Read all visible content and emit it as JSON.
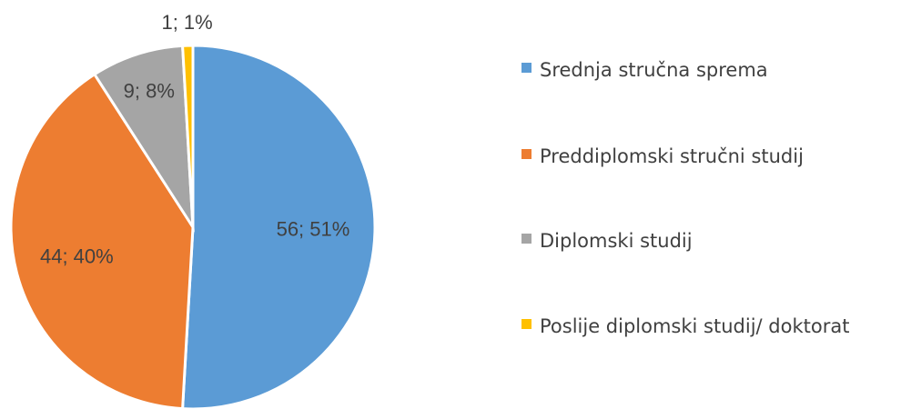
{
  "chart_data": {
    "type": "pie",
    "categories": [
      "Srednja stručna sprema",
      "Preddiplomski stručni studij",
      "Diplomski studij",
      "Poslije diplomski studij/ doktorat"
    ],
    "values": [
      56,
      44,
      9,
      1
    ],
    "value_labels": [
      "56; 51%",
      "44; 40%",
      "9; 8%",
      "1; 1%"
    ],
    "colors": [
      "#5b9bd5",
      "#ed7d31",
      "#a5a5a5",
      "#ffc000"
    ],
    "legend": "right"
  }
}
